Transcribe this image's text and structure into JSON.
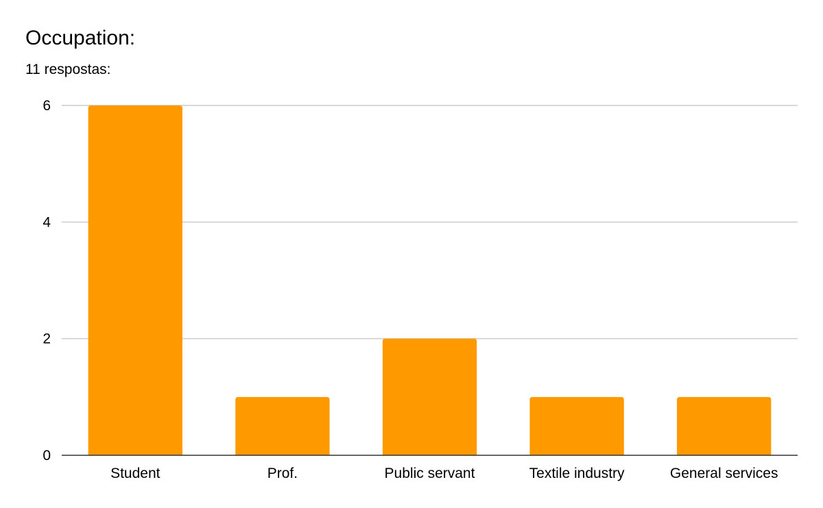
{
  "title": "Occupation:",
  "subtitle": "11 respostas:",
  "colors": {
    "bar": "#FF9900",
    "gridline": "#CCCCCC",
    "axis": "#333333",
    "text": "#000000"
  },
  "chart_data": {
    "type": "bar",
    "title": "Occupation:",
    "subtitle": "11 respostas:",
    "categories": [
      "Student",
      "Prof.",
      "Public servant",
      "Textile industry",
      "General services"
    ],
    "values": [
      6,
      1,
      2,
      1,
      1
    ],
    "ylim": [
      0,
      6
    ],
    "yticks": [
      0,
      2,
      4,
      6
    ],
    "grid": true,
    "legend": "none"
  }
}
